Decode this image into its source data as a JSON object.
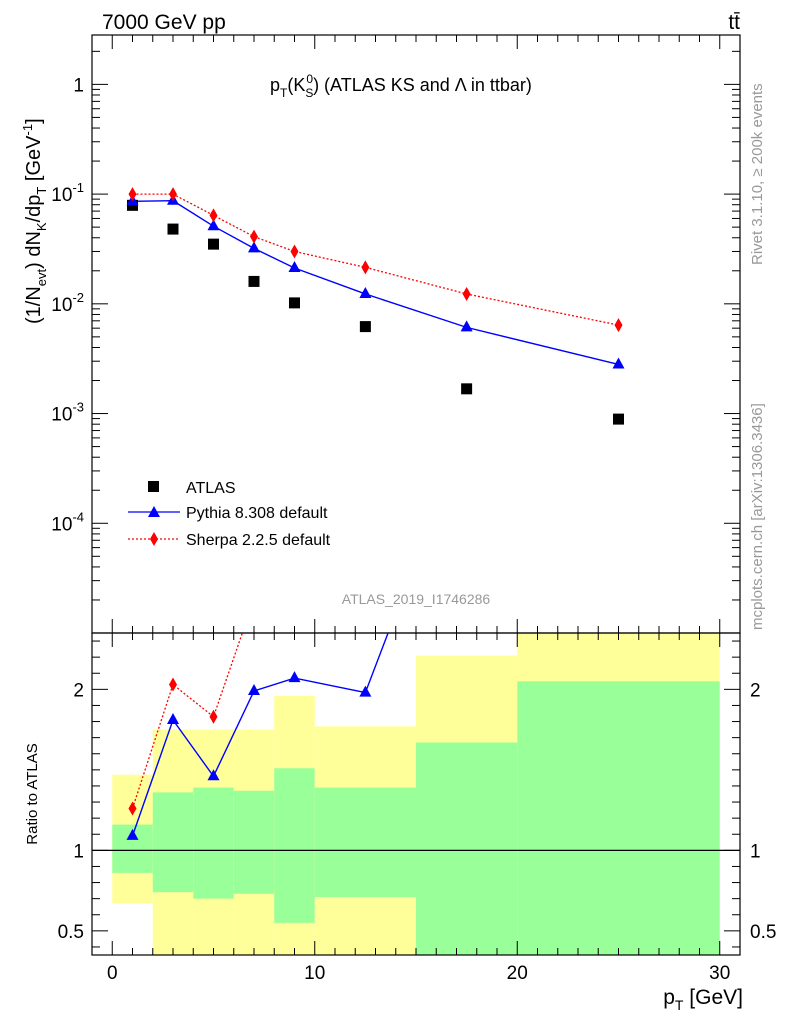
{
  "header": {
    "left": "7000 GeV pp",
    "right": "tt̄"
  },
  "side_labels": {
    "rivet": "Rivet 3.1.10, ≥ 200k events",
    "mcplots": "mcplots.cern.ch [arXiv:1306.3436]"
  },
  "chart_data": {
    "type": "scatter",
    "title": {
      "prefix": "p",
      "sub1": "T",
      "open": "(K",
      "sub2": "S",
      "sup2": "0",
      "rest": ") (ATLAS KS and Λ in ttbar)"
    },
    "watermark": "ATLAS_2019_I1746286",
    "xlabel": {
      "main": "p",
      "sub": "T",
      "unit": " [GeV]"
    },
    "ylabel": "(1/N_evt) dN_K/dp_T [GeV^-1]",
    "ratio_ylabel": "Ratio to ATLAS",
    "xlim": [
      -1,
      31
    ],
    "main_ylim_log10": [
      -5,
      0.45
    ],
    "ratio_ylim": [
      0.35,
      2.35
    ],
    "log_y": true,
    "x_ticks": [
      "0",
      "10",
      "20",
      "30"
    ],
    "y_tick_exponents": [
      "1",
      "10^-1",
      "10^-2",
      "10^-3",
      "10^-4"
    ],
    "ratio_ticks": [
      "0.5",
      "1",
      "2"
    ],
    "legend_position": "bottom-left",
    "legend": [
      "ATLAS",
      "Pythia 8.308 default",
      "Sherpa 2.2.5 default"
    ],
    "bin_edges": [
      0,
      2,
      4,
      6,
      8,
      10,
      15,
      20,
      30
    ],
    "series": [
      {
        "name": "ATLAS",
        "style": "markers",
        "color": "#000000",
        "x": [
          1,
          3,
          5,
          7,
          9,
          12.5,
          17.5,
          25
        ],
        "y": [
          0.079,
          0.048,
          0.035,
          0.016,
          0.0102,
          0.0062,
          0.00168,
          0.00089
        ]
      },
      {
        "name": "Pythia 8.308 default",
        "style": "line+triangles",
        "color": "#0000ff",
        "x": [
          1,
          3,
          5,
          7,
          9,
          12.5,
          17.5,
          25
        ],
        "y": [
          0.086,
          0.087,
          0.051,
          0.032,
          0.0212,
          0.0123,
          0.0061,
          0.0028
        ]
      },
      {
        "name": "Sherpa 2.2.5 default",
        "style": "dotted+diamonds",
        "color": "#ff0000",
        "x": [
          1,
          3,
          5,
          7,
          9,
          12.5,
          17.5,
          25
        ],
        "y": [
          0.1,
          0.1,
          0.064,
          0.041,
          0.03,
          0.0215,
          0.0123,
          0.0064
        ]
      }
    ],
    "ratio_series": [
      {
        "name": "Pythia 8.308 default",
        "x": [
          1,
          3,
          5,
          7,
          9,
          12.5,
          17.5
        ],
        "y": [
          1.09,
          1.81,
          1.46,
          1.99,
          2.07,
          1.98,
          3.63
        ]
      },
      {
        "name": "Sherpa 2.2.5 default",
        "x": [
          1,
          3,
          5,
          7,
          9
        ],
        "y": [
          1.26,
          2.03,
          1.83,
          2.56,
          2.94
        ]
      }
    ],
    "ratio_bands": {
      "stat_low": [
        0.86,
        0.74,
        0.7,
        0.73,
        0.55,
        0.71,
        0.33,
        0.33
      ],
      "stat_high": [
        1.16,
        1.36,
        1.39,
        1.37,
        1.51,
        1.39,
        1.67,
        2.05
      ],
      "total_low": [
        0.67,
        0.33,
        0.33,
        0.33,
        0.33,
        0.33,
        0.33,
        0.33
      ],
      "total_high": [
        1.47,
        1.75,
        1.75,
        1.75,
        1.96,
        1.77,
        2.21,
        2.7
      ],
      "stat_color": "#99ff99",
      "total_color": "#ffff99"
    }
  }
}
